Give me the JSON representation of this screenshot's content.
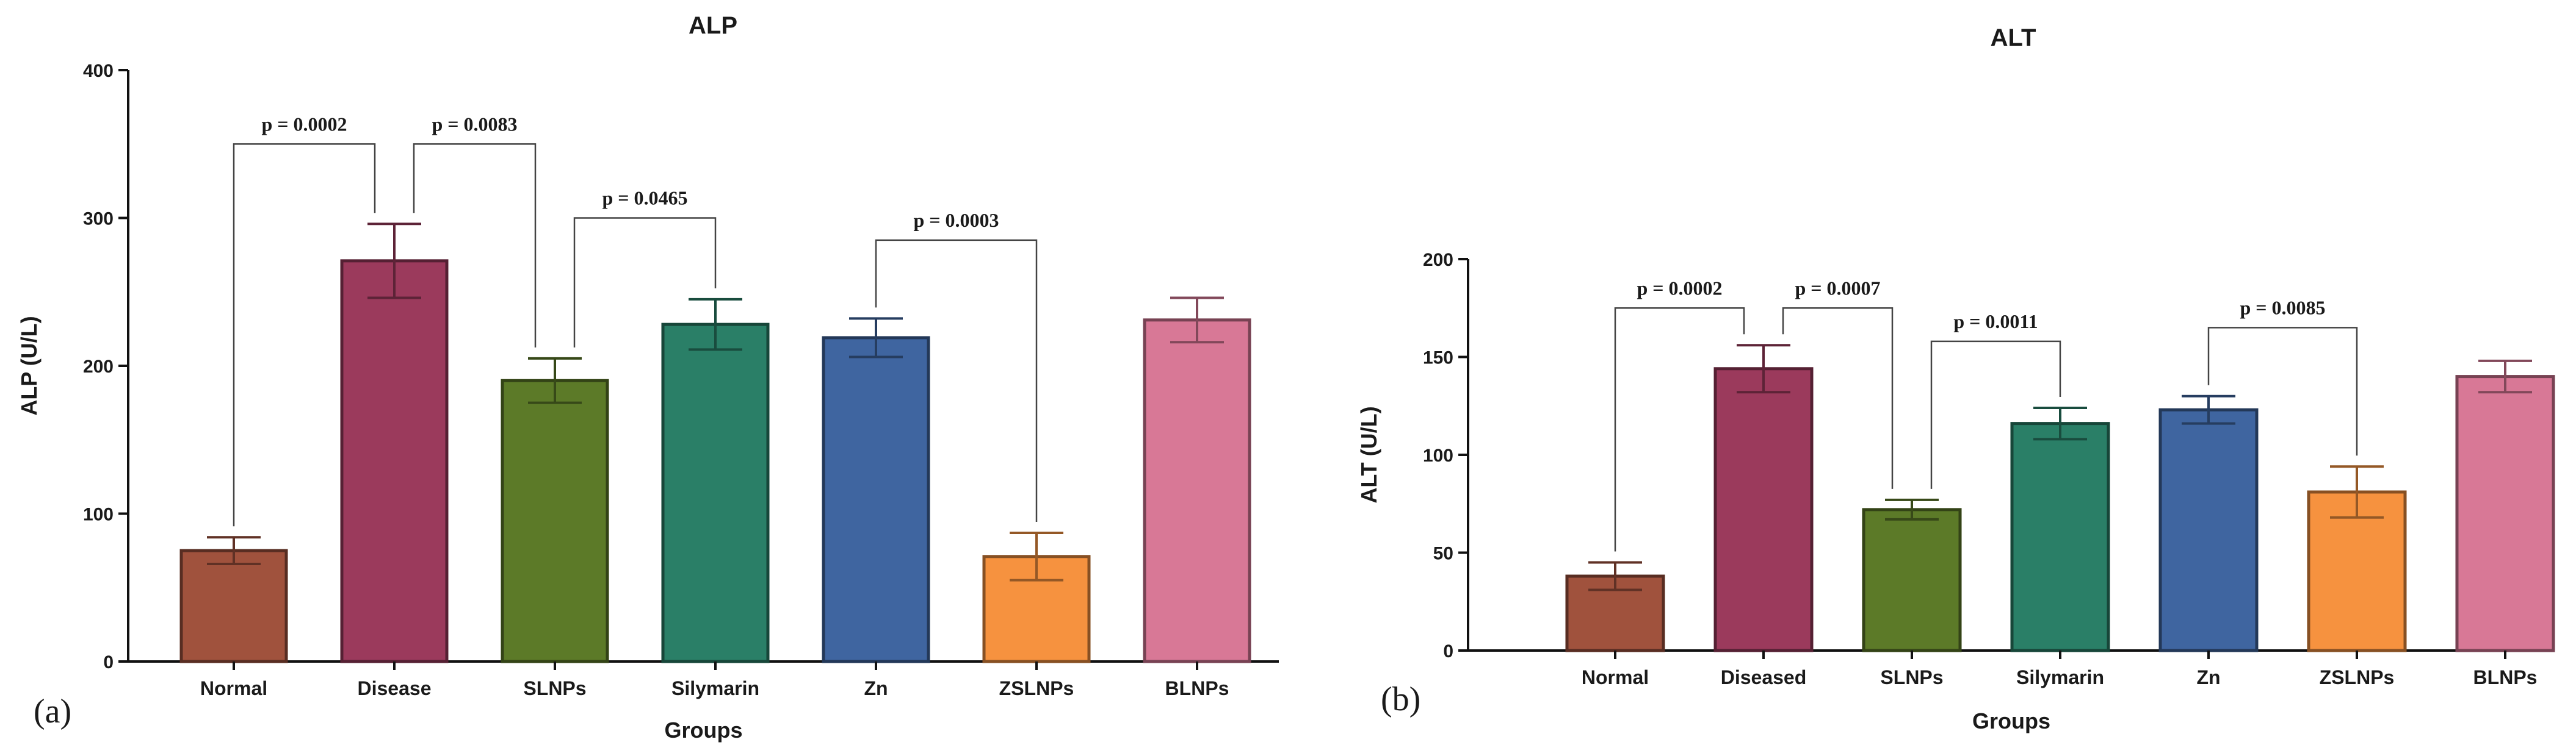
{
  "chart_data": [
    {
      "type": "bar",
      "panel_label": "(a)",
      "title": "ALP",
      "xlabel": "Groups",
      "ylabel": "ALP (U/L)",
      "ylim": [
        0,
        400
      ],
      "yticks": [
        0,
        100,
        200,
        300,
        400
      ],
      "categories": [
        "Normal",
        "Disease",
        "SLNPs",
        "Silymarin",
        "Zn",
        "ZSLNPs",
        "BLNPs"
      ],
      "values": [
        75,
        271,
        190,
        228,
        219,
        71,
        231
      ],
      "errors": [
        9,
        25,
        15,
        17,
        13,
        16,
        15
      ],
      "colors": [
        "#a0523d",
        "#9b3a5c",
        "#5c7a28",
        "#2a7f67",
        "#3f65a0",
        "#f6923f",
        "#d87896"
      ],
      "comparisons": [
        {
          "from": 0,
          "to": 1,
          "level": 350,
          "text": "p = 0.0002"
        },
        {
          "from": 1,
          "to": 2,
          "level": 350,
          "text": "p = 0.0083"
        },
        {
          "from": 2,
          "to": 3,
          "level": 300,
          "text": "p = 0.0465"
        },
        {
          "from": 4,
          "to": 5,
          "level": 285,
          "text": "p = 0.0003"
        }
      ]
    },
    {
      "type": "bar",
      "panel_label": "(b)",
      "title": "ALT",
      "xlabel": "Groups",
      "ylabel": "ALT (U/L)",
      "ylim": [
        0,
        200
      ],
      "yticks": [
        0,
        50,
        100,
        150,
        200
      ],
      "categories": [
        "Normal",
        "Diseased",
        "SLNPs",
        "Silymarin",
        "Zn",
        "ZSLNPs",
        "BLNPs"
      ],
      "values": [
        38,
        144,
        72,
        116,
        123,
        81,
        140
      ],
      "errors": [
        7,
        12,
        5,
        8,
        7,
        13,
        8
      ],
      "colors": [
        "#a0523d",
        "#9b3a5c",
        "#5c7a28",
        "#2a7f67",
        "#3f65a0",
        "#f6923f",
        "#d87896"
      ],
      "comparisons": [
        {
          "from": 0,
          "to": 1,
          "level": 175,
          "text": "p = 0.0002"
        },
        {
          "from": 1,
          "to": 2,
          "level": 175,
          "text": "p = 0.0007"
        },
        {
          "from": 2,
          "to": 3,
          "level": 158,
          "text": "p = 0.0011"
        },
        {
          "from": 4,
          "to": 5,
          "level": 165,
          "text": "p = 0.0085"
        }
      ]
    }
  ]
}
